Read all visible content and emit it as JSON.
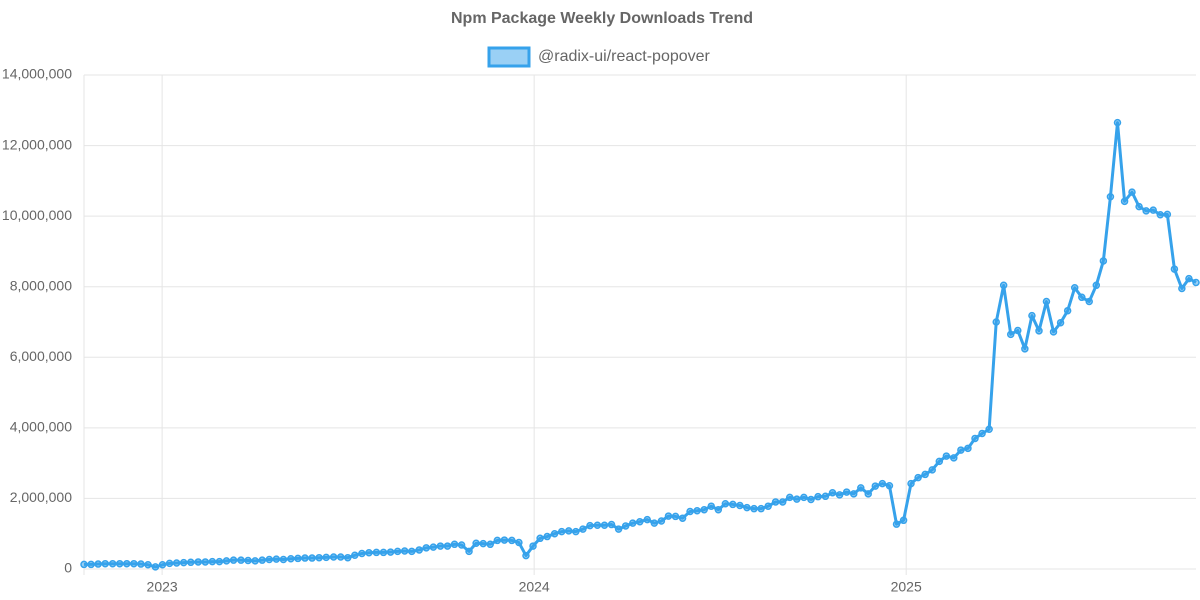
{
  "chart_data": {
    "type": "line",
    "title": "Npm Package Weekly Downloads Trend",
    "x": [
      2022.79,
      2022.809,
      2022.828,
      2022.847,
      2022.867,
      2022.886,
      2022.905,
      2022.924,
      2022.943,
      2022.962,
      2022.982,
      2023.001,
      2023.02,
      2023.039,
      2023.058,
      2023.077,
      2023.097,
      2023.116,
      2023.135,
      2023.154,
      2023.173,
      2023.192,
      2023.212,
      2023.231,
      2023.25,
      2023.269,
      2023.288,
      2023.307,
      2023.326,
      2023.346,
      2023.365,
      2023.384,
      2023.403,
      2023.422,
      2023.441,
      2023.461,
      2023.48,
      2023.499,
      2023.518,
      2023.537,
      2023.556,
      2023.576,
      2023.595,
      2023.614,
      2023.633,
      2023.652,
      2023.671,
      2023.691,
      2023.71,
      2023.729,
      2023.748,
      2023.767,
      2023.786,
      2023.805,
      2023.825,
      2023.844,
      2023.863,
      2023.882,
      2023.901,
      2023.92,
      2023.94,
      2023.959,
      2023.978,
      2023.997,
      2024.016,
      2024.035,
      2024.055,
      2024.074,
      2024.093,
      2024.112,
      2024.131,
      2024.15,
      2024.17,
      2024.189,
      2024.208,
      2024.227,
      2024.246,
      2024.265,
      2024.284,
      2024.304,
      2024.323,
      2024.342,
      2024.361,
      2024.38,
      2024.399,
      2024.419,
      2024.438,
      2024.457,
      2024.476,
      2024.495,
      2024.514,
      2024.534,
      2024.553,
      2024.572,
      2024.591,
      2024.61,
      2024.629,
      2024.649,
      2024.668,
      2024.687,
      2024.706,
      2024.725,
      2024.744,
      2024.763,
      2024.783,
      2024.802,
      2024.821,
      2024.84,
      2024.859,
      2024.878,
      2024.898,
      2024.917,
      2024.936,
      2024.955,
      2024.974,
      2024.993,
      2025.013,
      2025.032,
      2025.051,
      2025.07,
      2025.089,
      2025.108,
      2025.128,
      2025.147,
      2025.166,
      2025.185,
      2025.204,
      2025.223,
      2025.242,
      2025.262,
      2025.281,
      2025.3,
      2025.319,
      2025.338,
      2025.357,
      2025.377,
      2025.396,
      2025.415,
      2025.434,
      2025.453,
      2025.472,
      2025.492,
      2025.511,
      2025.53,
      2025.549,
      2025.568,
      2025.587,
      2025.607,
      2025.626,
      2025.645,
      2025.664,
      2025.683,
      2025.702,
      2025.721,
      2025.741,
      2025.76,
      2025.779
    ],
    "series": [
      {
        "name": "@radix-ui/react-popover",
        "color": "#36a2eb",
        "values": [
          130000,
          130000,
          140000,
          150000,
          150000,
          150000,
          150000,
          150000,
          140000,
          120000,
          60000,
          120000,
          160000,
          170000,
          180000,
          190000,
          200000,
          200000,
          210000,
          210000,
          230000,
          250000,
          250000,
          240000,
          230000,
          250000,
          270000,
          280000,
          270000,
          290000,
          300000,
          310000,
          310000,
          320000,
          330000,
          340000,
          340000,
          320000,
          390000,
          440000,
          460000,
          470000,
          470000,
          480000,
          500000,
          510000,
          500000,
          540000,
          600000,
          620000,
          650000,
          650000,
          700000,
          680000,
          500000,
          730000,
          720000,
          700000,
          810000,
          820000,
          810000,
          750000,
          380000,
          650000,
          870000,
          920000,
          1000000,
          1060000,
          1080000,
          1060000,
          1130000,
          1230000,
          1240000,
          1240000,
          1260000,
          1130000,
          1220000,
          1300000,
          1340000,
          1400000,
          1300000,
          1360000,
          1500000,
          1490000,
          1440000,
          1630000,
          1650000,
          1680000,
          1780000,
          1680000,
          1850000,
          1830000,
          1800000,
          1740000,
          1710000,
          1710000,
          1780000,
          1900000,
          1900000,
          2030000,
          1980000,
          2030000,
          1970000,
          2050000,
          2060000,
          2160000,
          2100000,
          2180000,
          2130000,
          2300000,
          2130000,
          2350000,
          2420000,
          2360000,
          1270000,
          1380000,
          2420000,
          2590000,
          2680000,
          2810000,
          3050000,
          3200000,
          3150000,
          3370000,
          3420000,
          3700000,
          3840000,
          3960000,
          7000000,
          8040000,
          6650000,
          6760000,
          6240000,
          7180000,
          6750000,
          7580000,
          6720000,
          6980000,
          7320000,
          7970000,
          7700000,
          7580000,
          8040000,
          8730000,
          10550000,
          12650000,
          10420000,
          10680000,
          10270000,
          10150000,
          10170000,
          10040000,
          10050000,
          8500000,
          7950000,
          8230000,
          8120000
        ]
      }
    ],
    "xlim": [
      2022.79,
      2025.779
    ],
    "xticks": [
      2023,
      2024,
      2025
    ],
    "ylim": [
      0,
      14000000
    ],
    "yticks": [
      0,
      {
        "value": 2000000,
        "label": "2,000,000"
      },
      {
        "value": 4000000,
        "label": "4,000,000"
      },
      {
        "value": 6000000,
        "label": "6,000,000"
      },
      {
        "value": 8000000,
        "label": "8,000,000"
      },
      {
        "value": 10000000,
        "label": "10,000,000"
      },
      {
        "value": 12000000,
        "label": "12,000,000"
      },
      {
        "value": 14000000,
        "label": "14,000,000"
      }
    ],
    "grid": true,
    "legend": "top"
  }
}
